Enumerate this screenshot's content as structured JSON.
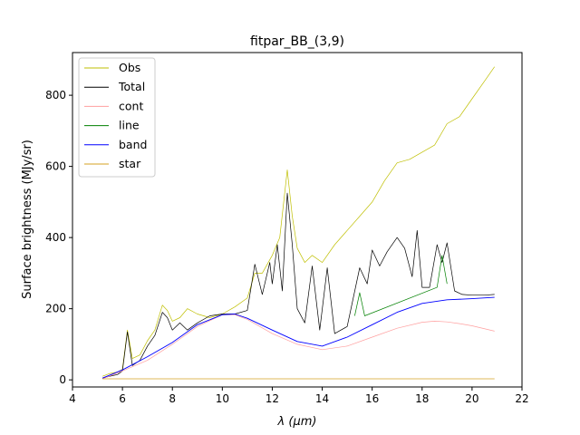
{
  "chart_data": {
    "type": "line",
    "title": "fitpar_BB_(3,9)",
    "xlabel": "λ (μm)",
    "ylabel": "Surface brightness (MJy/sr)",
    "xlim": [
      4,
      22
    ],
    "ylim": [
      -20,
      920
    ],
    "xticks": [
      4,
      6,
      8,
      10,
      12,
      14,
      16,
      18,
      20,
      22
    ],
    "yticks": [
      0,
      200,
      400,
      600,
      800
    ],
    "grid": false,
    "legend_position": "top-left",
    "series": [
      {
        "name": "Obs",
        "color": "#bfbf00",
        "x": [
          5.2,
          5.5,
          5.8,
          6.0,
          6.2,
          6.4,
          6.7,
          7.0,
          7.3,
          7.6,
          7.8,
          8.0,
          8.3,
          8.6,
          9.0,
          9.5,
          10.0,
          10.5,
          11.0,
          11.3,
          11.6,
          12.0,
          12.3,
          12.6,
          12.8,
          13.0,
          13.3,
          13.6,
          14.0,
          14.5,
          15.0,
          15.5,
          16.0,
          16.5,
          17.0,
          17.5,
          18.0,
          18.5,
          19.0,
          19.5,
          20.0,
          20.5,
          20.9
        ],
        "values": [
          10,
          18,
          22,
          30,
          140,
          60,
          70,
          110,
          140,
          210,
          195,
          165,
          175,
          200,
          185,
          175,
          185,
          205,
          230,
          300,
          300,
          350,
          400,
          590,
          460,
          370,
          330,
          350,
          330,
          380,
          420,
          460,
          500,
          560,
          610,
          620,
          640,
          660,
          720,
          740,
          790,
          840,
          880
        ]
      },
      {
        "name": "Total",
        "color": "#000000",
        "x": [
          5.2,
          5.5,
          5.8,
          6.0,
          6.2,
          6.4,
          6.7,
          7.0,
          7.3,
          7.6,
          7.8,
          8.0,
          8.3,
          8.6,
          9.0,
          9.5,
          10.0,
          10.5,
          11.0,
          11.3,
          11.6,
          11.9,
          12.0,
          12.2,
          12.4,
          12.6,
          12.8,
          13.0,
          13.3,
          13.6,
          13.9,
          14.2,
          14.5,
          15.0,
          15.5,
          15.8,
          16.0,
          16.3,
          16.6,
          17.0,
          17.3,
          17.6,
          17.8,
          18.0,
          18.3,
          18.6,
          18.8,
          19.0,
          19.3,
          19.6,
          20.0,
          20.5,
          20.9
        ],
        "values": [
          5,
          10,
          15,
          25,
          135,
          40,
          55,
          95,
          125,
          190,
          175,
          140,
          160,
          140,
          160,
          180,
          185,
          185,
          195,
          325,
          240,
          330,
          270,
          380,
          250,
          525,
          380,
          200,
          160,
          320,
          140,
          315,
          130,
          150,
          315,
          270,
          365,
          320,
          360,
          400,
          370,
          290,
          420,
          260,
          260,
          380,
          330,
          385,
          250,
          240,
          238,
          238,
          240
        ]
      },
      {
        "name": "cont",
        "color": "#ff9f9f",
        "x": [
          5.2,
          6,
          7,
          8,
          9,
          10,
          10.5,
          11,
          12,
          13,
          14,
          15,
          16,
          17,
          18,
          18.5,
          19,
          19.5,
          20,
          20.9
        ],
        "values": [
          3,
          25,
          55,
          100,
          150,
          183,
          183,
          170,
          130,
          100,
          85,
          95,
          120,
          145,
          162,
          165,
          163,
          158,
          152,
          137
        ]
      },
      {
        "name": "line",
        "color": "#008000",
        "x": [
          15.3,
          15.5,
          15.7,
          18.6,
          18.8,
          19.0
        ],
        "values": [
          180,
          245,
          180,
          260,
          350,
          270
        ]
      },
      {
        "name": "band",
        "color": "#0000ff",
        "x": [
          5.2,
          6,
          7,
          8,
          9,
          10,
          10.5,
          11,
          12,
          13,
          14,
          15,
          16,
          17,
          18,
          19,
          20,
          20.9
        ],
        "values": [
          5,
          28,
          65,
          105,
          155,
          183,
          185,
          173,
          140,
          108,
          95,
          120,
          155,
          190,
          215,
          225,
          228,
          232
        ]
      },
      {
        "name": "star",
        "color": "#d4a020",
        "x": [
          5.2,
          8,
          12,
          16,
          20.9
        ],
        "values": [
          3,
          3,
          3,
          3,
          3
        ]
      }
    ]
  }
}
